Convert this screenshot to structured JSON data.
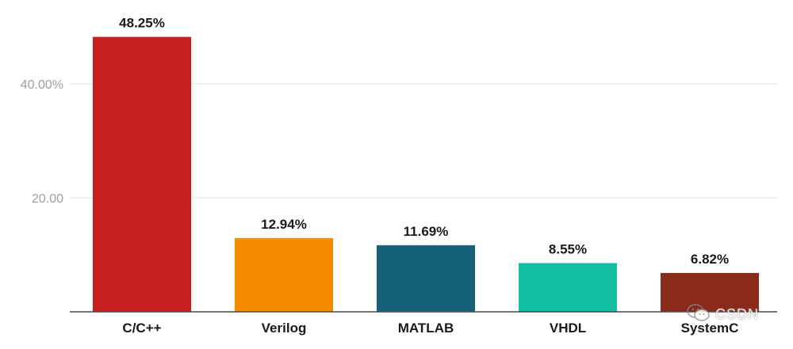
{
  "chart_data": {
    "type": "bar",
    "categories": [
      "C/C++",
      "Verilog",
      "MATLAB",
      "VHDL",
      "SystemC"
    ],
    "values": [
      48.25,
      12.94,
      11.69,
      8.55,
      6.82
    ],
    "value_labels": [
      "48.25%",
      "12.94%",
      "11.69%",
      "8.55%",
      "6.82%"
    ],
    "colors": [
      "#c41e1e",
      "#f68b00",
      "#17607a",
      "#13bfa2",
      "#8a2a1a"
    ],
    "yticks": [
      {
        "value": 20,
        "label": "20.00"
      },
      {
        "value": 40,
        "label": "40.00%"
      }
    ],
    "ylim": [
      0,
      50
    ],
    "grid": true,
    "title": "",
    "xlabel": "",
    "ylabel": ""
  },
  "watermark": {
    "text": "CSDN",
    "icon": "wechat-icon"
  }
}
